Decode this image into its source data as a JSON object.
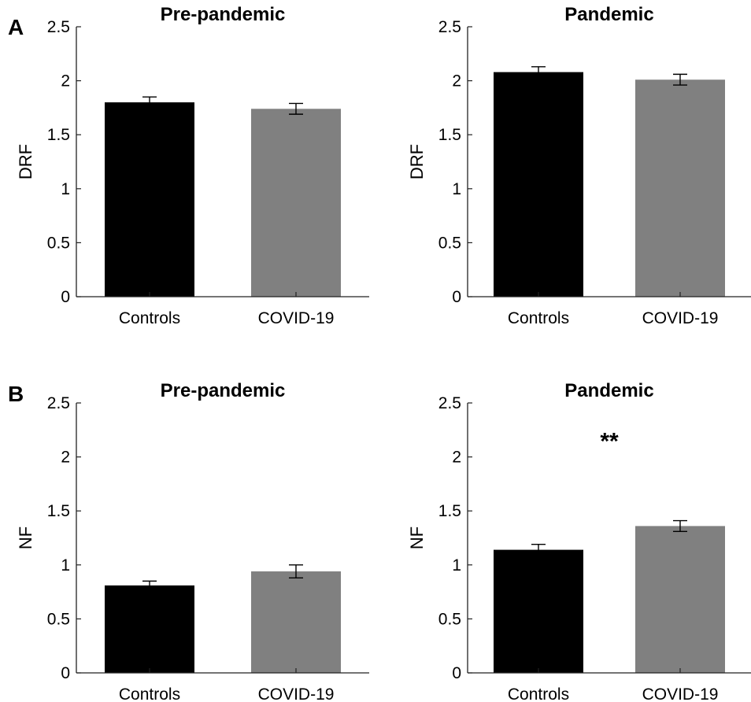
{
  "panels": [
    {
      "letter": "A"
    },
    {
      "letter": "B"
    }
  ],
  "chart_data": [
    {
      "type": "bar",
      "panel": "A",
      "title": "Pre-pandemic",
      "ylabel": "DRF",
      "xlabel": "",
      "categories": [
        "Controls",
        "COVID-19"
      ],
      "values": [
        1.8,
        1.74
      ],
      "errors": [
        0.05,
        0.05
      ],
      "colors": [
        "#000000",
        "#808080"
      ],
      "ylim": [
        0,
        2.5
      ],
      "yticks": [
        "0",
        "0.5",
        "1",
        "1.5",
        "2",
        "2.5"
      ],
      "annotation": ""
    },
    {
      "type": "bar",
      "panel": "A",
      "title": "Pandemic",
      "ylabel": "DRF",
      "xlabel": "",
      "categories": [
        "Controls",
        "COVID-19"
      ],
      "values": [
        2.08,
        2.01
      ],
      "errors": [
        0.05,
        0.05
      ],
      "colors": [
        "#000000",
        "#808080"
      ],
      "ylim": [
        0,
        2.5
      ],
      "yticks": [
        "0",
        "0.5",
        "1",
        "1.5",
        "2",
        "2.5"
      ],
      "annotation": ""
    },
    {
      "type": "bar",
      "panel": "B",
      "title": "Pre-pandemic",
      "ylabel": "NF",
      "xlabel": "",
      "categories": [
        "Controls",
        "COVID-19"
      ],
      "values": [
        0.81,
        0.94
      ],
      "errors": [
        0.04,
        0.06
      ],
      "colors": [
        "#000000",
        "#808080"
      ],
      "ylim": [
        0,
        2.5
      ],
      "yticks": [
        "0",
        "0.5",
        "1",
        "1.5",
        "2",
        "2.5"
      ],
      "annotation": ""
    },
    {
      "type": "bar",
      "panel": "B",
      "title": "Pandemic",
      "ylabel": "NF",
      "xlabel": "",
      "categories": [
        "Controls",
        "COVID-19"
      ],
      "values": [
        1.14,
        1.36
      ],
      "errors": [
        0.05,
        0.05
      ],
      "colors": [
        "#000000",
        "#808080"
      ],
      "ylim": [
        0,
        2.5
      ],
      "yticks": [
        "0",
        "0.5",
        "1",
        "1.5",
        "2",
        "2.5"
      ],
      "annotation": "**"
    }
  ]
}
